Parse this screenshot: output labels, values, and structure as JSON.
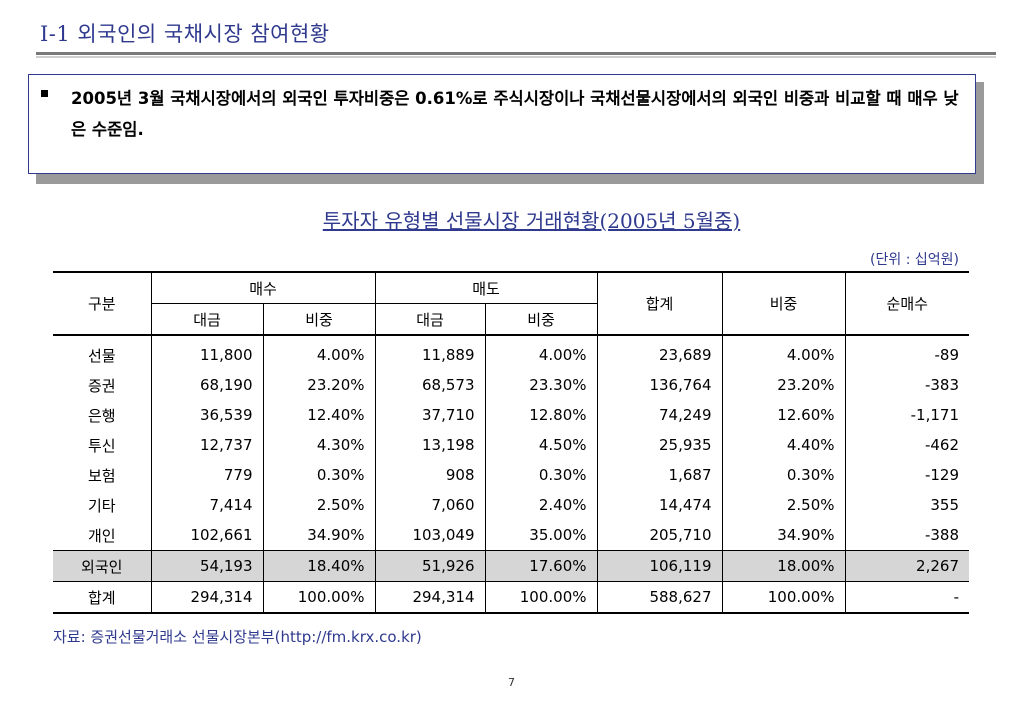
{
  "header": {
    "title": "I-1 외국인의 국채시장 참여현황"
  },
  "summary": {
    "text": "2005년 3월 국채시장에서의 외국인 투자비중은 0.61%로 주식시장이나 국채선물시장에서의 외국인 비중과 비교할 때 매우 낮은 수준임."
  },
  "table": {
    "title": "투자자 유형별 선물시장 거래현황(2005년 5월중)",
    "unit": "(단위 : 십억원)",
    "headers": {
      "category": "구분",
      "buy": "매수",
      "sell": "매도",
      "amount": "대금",
      "share": "비중",
      "total": "합계",
      "total_share": "비중",
      "net_buy": "순매수"
    },
    "rows": [
      {
        "category": "선물",
        "buy_amount": "11,800",
        "buy_share": "4.00%",
        "sell_amount": "11,889",
        "sell_share": "4.00%",
        "total": "23,689",
        "total_share": "4.00%",
        "net_buy": "-89"
      },
      {
        "category": "증권",
        "buy_amount": "68,190",
        "buy_share": "23.20%",
        "sell_amount": "68,573",
        "sell_share": "23.30%",
        "total": "136,764",
        "total_share": "23.20%",
        "net_buy": "-383"
      },
      {
        "category": "은행",
        "buy_amount": "36,539",
        "buy_share": "12.40%",
        "sell_amount": "37,710",
        "sell_share": "12.80%",
        "total": "74,249",
        "total_share": "12.60%",
        "net_buy": "-1,171"
      },
      {
        "category": "투신",
        "buy_amount": "12,737",
        "buy_share": "4.30%",
        "sell_amount": "13,198",
        "sell_share": "4.50%",
        "total": "25,935",
        "total_share": "4.40%",
        "net_buy": "-462"
      },
      {
        "category": "보험",
        "buy_amount": "779",
        "buy_share": "0.30%",
        "sell_amount": "908",
        "sell_share": "0.30%",
        "total": "1,687",
        "total_share": "0.30%",
        "net_buy": "-129"
      },
      {
        "category": "기타",
        "buy_amount": "7,414",
        "buy_share": "2.50%",
        "sell_amount": "7,060",
        "sell_share": "2.40%",
        "total": "14,474",
        "total_share": "2.50%",
        "net_buy": "355"
      },
      {
        "category": "개인",
        "buy_amount": "102,661",
        "buy_share": "34.90%",
        "sell_amount": "103,049",
        "sell_share": "35.00%",
        "total": "205,710",
        "total_share": "34.90%",
        "net_buy": "-388"
      },
      {
        "category": "외국인",
        "buy_amount": "54,193",
        "buy_share": "18.40%",
        "sell_amount": "51,926",
        "sell_share": "17.60%",
        "total": "106,119",
        "total_share": "18.00%",
        "net_buy": "2,267"
      },
      {
        "category": "합계",
        "buy_amount": "294,314",
        "buy_share": "100.00%",
        "sell_amount": "294,314",
        "sell_share": "100.00%",
        "total": "588,627",
        "total_share": "100.00%",
        "net_buy": "-"
      }
    ]
  },
  "source": {
    "text": "자료: 증권선물거래소 선물시장본부(http://fm.krx.co.kr)"
  },
  "page_number": "7",
  "colors": {
    "accent": "#2f3a8f",
    "highlight_row": "#d6d6d6"
  }
}
